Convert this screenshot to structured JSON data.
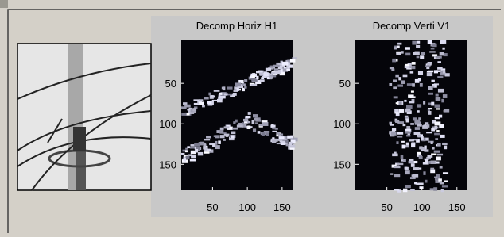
{
  "panels": [
    {
      "title": "Decomp Horiz H1",
      "xlim": [
        5,
        165
      ],
      "ylim": [
        -4,
        182
      ],
      "xticks": [
        50,
        100,
        150
      ],
      "yticks": [
        50,
        100,
        150
      ]
    },
    {
      "title": "Decomp Verti V1",
      "xlim": [
        5,
        165
      ],
      "ylim": [
        -4,
        182
      ],
      "xticks": [
        50,
        100,
        150
      ],
      "yticks": [
        50,
        100,
        150
      ]
    }
  ]
}
